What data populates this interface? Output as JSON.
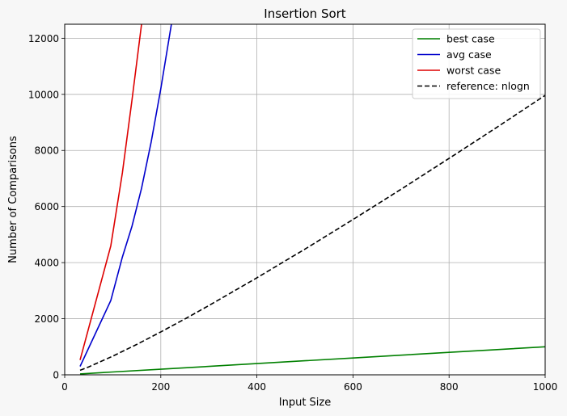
{
  "chart_data": {
    "type": "line",
    "title": "Insertion Sort",
    "xlabel": "Input Size",
    "ylabel": "Number of Comparisons",
    "xlim": [
      0,
      1000
    ],
    "ylim": [
      0,
      12500
    ],
    "xticks": [
      0,
      200,
      400,
      600,
      800,
      1000
    ],
    "yticks": [
      0,
      2000,
      4000,
      6000,
      8000,
      10000,
      12000
    ],
    "grid": true,
    "legend_position": "top-right",
    "series": [
      {
        "name": "best case",
        "color": "#008000",
        "style": "solid",
        "x": [
          32,
          100,
          200,
          300,
          400,
          500,
          600,
          700,
          800,
          900,
          1000
        ],
        "y": [
          32,
          100,
          200,
          300,
          400,
          500,
          600,
          700,
          800,
          900,
          1000
        ]
      },
      {
        "name": "avg case",
        "color": "#0000cc",
        "style": "solid",
        "x": [
          32,
          96,
          120,
          140,
          160,
          180,
          200,
          222
        ],
        "y": [
          300,
          2650,
          4200,
          5300,
          6650,
          8300,
          10200,
          12500
        ]
      },
      {
        "name": "worst case",
        "color": "#dd0000",
        "style": "solid",
        "x": [
          32,
          96,
          120,
          140,
          160
        ],
        "y": [
          528,
          4600,
          7200,
          9800,
          12500
        ]
      },
      {
        "name": "reference: nlogn",
        "color": "#000000",
        "style": "dashed",
        "x": [
          32,
          50,
          100,
          150,
          200,
          250,
          300,
          400,
          500,
          600,
          700,
          800,
          900,
          1000
        ],
        "y": [
          160,
          282,
          664,
          1084,
          1529,
          1991,
          2469,
          3458,
          4483,
          5537,
          6616,
          7715,
          8832,
          9966
        ]
      }
    ]
  }
}
